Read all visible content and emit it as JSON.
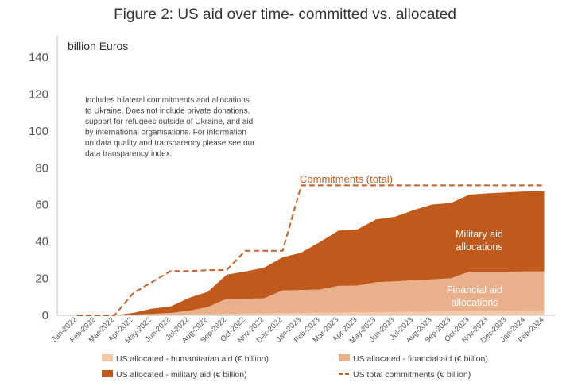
{
  "title": "Figure 2: US aid over time- committed vs. allocated",
  "colors": {
    "humanitarian": "#f3c9a8",
    "financial": "#e8b18b",
    "military": "#c05a1c",
    "commitments": "#c0622a"
  },
  "chart_data": {
    "type": "area",
    "title": "Figure 2: US aid over time- committed vs. allocated",
    "ylabel": "billion Euros",
    "xlabel": "",
    "ylim": [
      0,
      140
    ],
    "yticks": [
      0,
      20,
      40,
      60,
      80,
      100,
      120,
      140
    ],
    "grid": false,
    "legend_position": "bottom",
    "categories": [
      "Jan-2022",
      "Feb-2022",
      "Mar-2022",
      "Apr-2022",
      "May-2022",
      "Jun-2022",
      "Jul-2022",
      "Aug-2022",
      "Sep-2022",
      "Oct-2022",
      "Nov-2022",
      "Dec-2022",
      "Jan-2023",
      "Feb-2023",
      "Mar-2023",
      "Apr-2023",
      "May-2023",
      "Jun-2023",
      "Jul-2023",
      "Aug-2023",
      "Sep-2023",
      "Oct-2023",
      "Nov-2023",
      "Dec-2023",
      "Jan-2024",
      "Feb-2024"
    ],
    "series": [
      {
        "name": "US allocated - humanitarian aid (€ billion)",
        "kind": "stacked-area",
        "values": [
          0,
          0,
          0,
          0.1,
          0.2,
          0.3,
          0.5,
          0.6,
          0.8,
          0.9,
          1.0,
          1.2,
          1.3,
          1.4,
          1.5,
          1.6,
          1.7,
          1.8,
          1.9,
          2.0,
          2.1,
          2.2,
          2.3,
          2.3,
          2.4,
          2.4
        ]
      },
      {
        "name": "US allocated - financial aid (€ billion)",
        "kind": "stacked-area",
        "values": [
          0,
          0,
          0,
          0.2,
          0.6,
          1.0,
          2.0,
          3.9,
          8.2,
          8.1,
          8.2,
          12.3,
          12.4,
          12.6,
          14.5,
          14.5,
          16.3,
          16.6,
          17.1,
          17.5,
          18.0,
          21.5,
          21.4,
          21.4,
          21.4,
          21.4
        ]
      },
      {
        "name": "US allocated - military aid (€ billion)",
        "kind": "stacked-area",
        "values": [
          0,
          0,
          0,
          1.0,
          2.8,
          3.5,
          7.0,
          8.3,
          13.0,
          14.8,
          16.6,
          18.0,
          20.3,
          25.8,
          30.0,
          30.5,
          34.0,
          35.0,
          38.0,
          40.6,
          40.8,
          41.8,
          42.5,
          43.0,
          43.4,
          43.4
        ]
      },
      {
        "name": "US total commitments (€ billion)",
        "kind": "dashed-line",
        "values": [
          0,
          0,
          0,
          12,
          18,
          24,
          24,
          24.5,
          24.5,
          35,
          35,
          35,
          70.5,
          70.5,
          70.5,
          70.5,
          70.5,
          70.5,
          70.5,
          70.5,
          70.5,
          70.5,
          70.5,
          70.5,
          70.5,
          70.5
        ]
      }
    ],
    "annotations": {
      "note": [
        "Includes bilateral commitments and allocations",
        "to Ukraine. Does not include private donations,",
        "support for refugees outside of Ukraine, and aid",
        "by international organisations.  For information",
        "on data quality and transparency please see our",
        "data transparency index."
      ],
      "commitments_label": "Commitments (total)",
      "military_label": [
        "Military aid",
        "allocations"
      ],
      "financial_label": [
        "Financial aid",
        "allocations"
      ]
    },
    "legend": [
      {
        "label": "US allocated - humanitarian aid (€ billion)",
        "kind": "swatch",
        "color_key": "humanitarian"
      },
      {
        "label": "US allocated - financial aid (€ billion)",
        "kind": "swatch",
        "color_key": "financial"
      },
      {
        "label": "US allocated - military aid (€ billion)",
        "kind": "swatch",
        "color_key": "military"
      },
      {
        "label": "US total commitments (€ billion)",
        "kind": "dash",
        "color_key": "commitments"
      }
    ]
  }
}
